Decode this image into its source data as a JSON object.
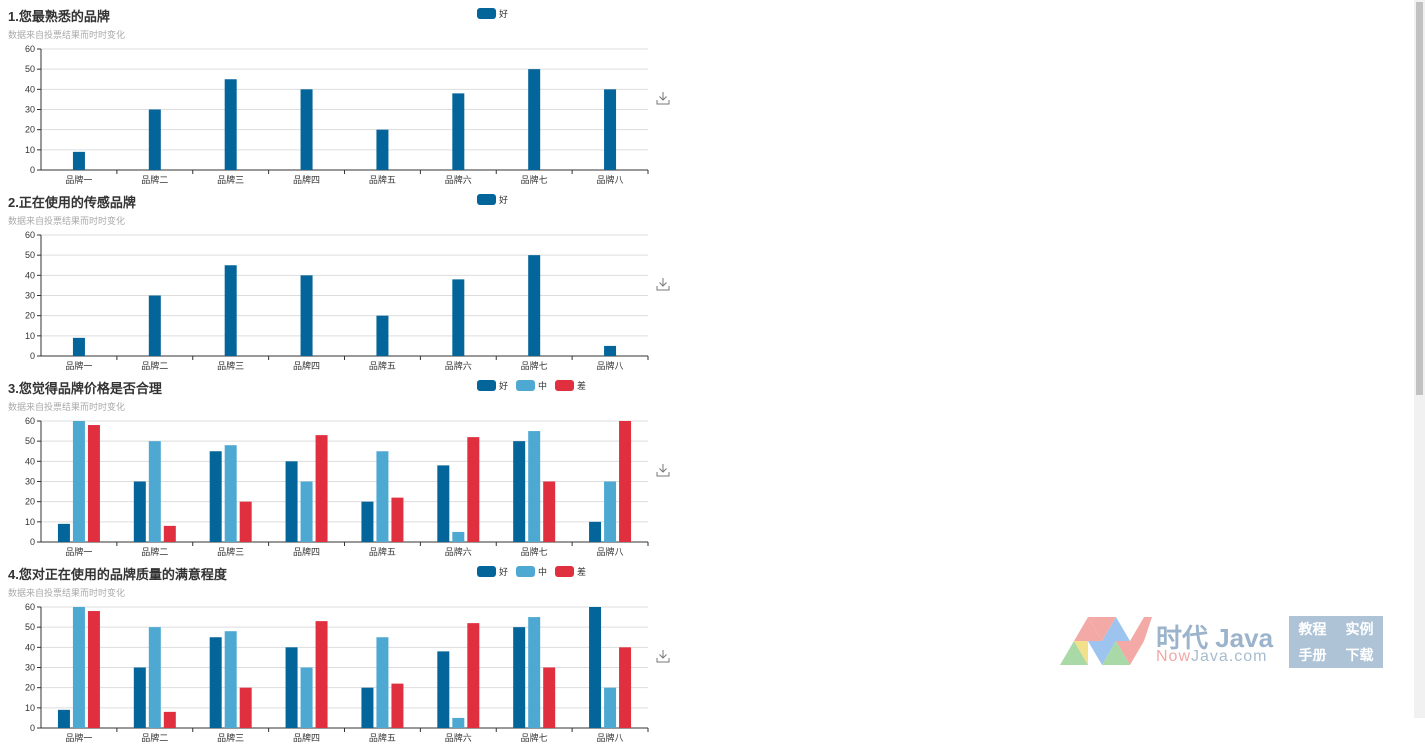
{
  "colors": {
    "good": "#03659a",
    "mid": "#4ea9d2",
    "bad": "#e0303f"
  },
  "chart_data": [
    {
      "type": "bar",
      "title": "1.您最熟悉的品牌",
      "subtitle": "数据来自投票结果而时时变化",
      "categories": [
        "品牌一",
        "品牌二",
        "品牌三",
        "品牌四",
        "品牌五",
        "品牌六",
        "品牌七",
        "品牌八"
      ],
      "ylim": [
        0,
        60
      ],
      "yticks": [
        0,
        10,
        20,
        30,
        40,
        50,
        60
      ],
      "legend_position": "top-center",
      "series": [
        {
          "name": "好",
          "key": "good",
          "values": [
            9,
            30,
            45,
            40,
            20,
            38,
            50,
            40
          ]
        }
      ]
    },
    {
      "type": "bar",
      "title": "2.正在使用的传感品牌",
      "subtitle": "数据来自投票结果而时时变化",
      "categories": [
        "品牌一",
        "品牌二",
        "品牌三",
        "品牌四",
        "品牌五",
        "品牌六",
        "品牌七",
        "品牌八"
      ],
      "ylim": [
        0,
        60
      ],
      "yticks": [
        0,
        10,
        20,
        30,
        40,
        50,
        60
      ],
      "legend_position": "top-center",
      "series": [
        {
          "name": "好",
          "key": "good",
          "values": [
            9,
            30,
            45,
            40,
            20,
            38,
            50,
            5
          ]
        }
      ]
    },
    {
      "type": "bar",
      "title": "3.您觉得品牌价格是否合理",
      "subtitle": "数据来自投票结果而时时变化",
      "categories": [
        "品牌一",
        "品牌二",
        "品牌三",
        "品牌四",
        "品牌五",
        "品牌六",
        "品牌七",
        "品牌八"
      ],
      "ylim": [
        0,
        60
      ],
      "yticks": [
        0,
        10,
        20,
        30,
        40,
        50,
        60
      ],
      "legend_position": "top-center",
      "series": [
        {
          "name": "好",
          "key": "good",
          "values": [
            9,
            30,
            45,
            40,
            20,
            38,
            50,
            10
          ]
        },
        {
          "name": "中",
          "key": "mid",
          "values": [
            60,
            50,
            48,
            30,
            45,
            5,
            55,
            30
          ]
        },
        {
          "name": "差",
          "key": "bad",
          "values": [
            58,
            8,
            20,
            53,
            22,
            52,
            30,
            60
          ]
        }
      ]
    },
    {
      "type": "bar",
      "title": "4.您对正在使用的品牌质量的满意程度",
      "subtitle": "数据来自投票结果而时时变化",
      "categories": [
        "品牌一",
        "品牌二",
        "品牌三",
        "品牌四",
        "品牌五",
        "品牌六",
        "品牌七",
        "品牌八"
      ],
      "ylim": [
        0,
        60
      ],
      "yticks": [
        0,
        10,
        20,
        30,
        40,
        50,
        60
      ],
      "legend_position": "top-center",
      "series": [
        {
          "name": "好",
          "key": "good",
          "values": [
            9,
            30,
            45,
            40,
            20,
            38,
            50,
            60
          ]
        },
        {
          "name": "中",
          "key": "mid",
          "values": [
            60,
            50,
            48,
            30,
            45,
            5,
            55,
            20
          ]
        },
        {
          "name": "差",
          "key": "bad",
          "values": [
            58,
            8,
            20,
            53,
            22,
            52,
            30,
            40
          ]
        }
      ]
    }
  ],
  "watermark": {
    "brand_cn": "时代 Java",
    "domain_now": "Now",
    "domain_rest": "Java.com",
    "links": [
      "教程",
      "实例",
      "手册",
      "下载"
    ]
  }
}
